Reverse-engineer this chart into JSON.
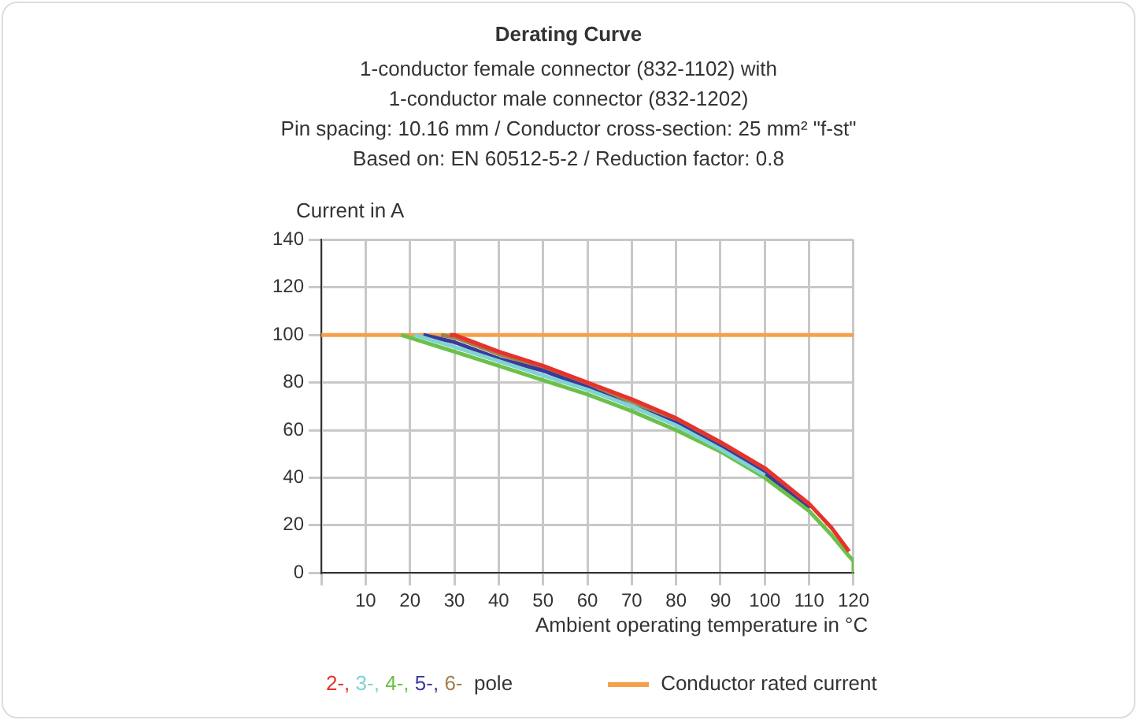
{
  "chart_data": {
    "type": "line",
    "title": "Derating Curve",
    "subtitle": "1-conductor female connector (832-1102) with\n1-conductor male connector (832-1202)\nPin spacing: 10.16 mm / Conductor cross-section: 25 mm² \"f-st\"\nBased on: EN 60512-5-2 / Reduction factor: 0.8",
    "ylabel": "Current in A",
    "xlabel": "Ambient operating temperature in °C",
    "legend_title": "pole",
    "xlim": [
      0,
      120
    ],
    "xticks": [
      {
        "value": 0,
        "label": null
      },
      10,
      20,
      30,
      40,
      50,
      60,
      70,
      80,
      90,
      100,
      110,
      120
    ],
    "ylim": [
      0,
      140
    ],
    "yticks": [
      0,
      20,
      40,
      60,
      80,
      100,
      120,
      140
    ],
    "grid": true,
    "legend": "bottom",
    "marker": "none",
    "line_style": "solid",
    "series": [
      {
        "name": "2-,",
        "color": "#e8312a",
        "x": [
          29,
          30,
          40,
          50,
          60,
          70,
          80,
          90,
          100,
          110,
          115,
          119
        ],
        "values": [
          100,
          100,
          93,
          87,
          80,
          73,
          65,
          55,
          44,
          29,
          19,
          9
        ]
      },
      {
        "name": "3-,",
        "color": "#7fd3d3",
        "x": [
          21,
          30,
          40,
          50,
          60,
          70,
          80,
          90,
          100
        ],
        "values": [
          100,
          95,
          89,
          83,
          77,
          70,
          62,
          52,
          41
        ]
      },
      {
        "name": "4-,",
        "color": "#6cc04a",
        "x": [
          18,
          30,
          40,
          50,
          60,
          70,
          80,
          90,
          100,
          110,
          115,
          119,
          120,
          120
        ],
        "values": [
          100,
          93,
          87,
          81,
          75,
          68,
          60,
          51,
          40,
          26,
          16,
          7,
          5,
          0
        ]
      },
      {
        "name": "5-,",
        "color": "#3a3a9a",
        "x": [
          23,
          30,
          40,
          50,
          60,
          70,
          80,
          90,
          100,
          110
        ],
        "values": [
          100,
          97,
          90,
          85,
          78,
          70,
          63,
          53,
          42,
          27
        ]
      },
      {
        "name": "6-",
        "color": "#a0804a",
        "x": [
          27,
          30,
          40,
          50,
          60,
          70,
          80,
          90,
          100
        ],
        "values": [
          100,
          99,
          92,
          86,
          79,
          72,
          64,
          54,
          43
        ]
      },
      {
        "name": "Conductor rated current",
        "color": "#f5a04a",
        "x": [
          0,
          120
        ],
        "values": [
          100,
          100
        ]
      }
    ]
  }
}
